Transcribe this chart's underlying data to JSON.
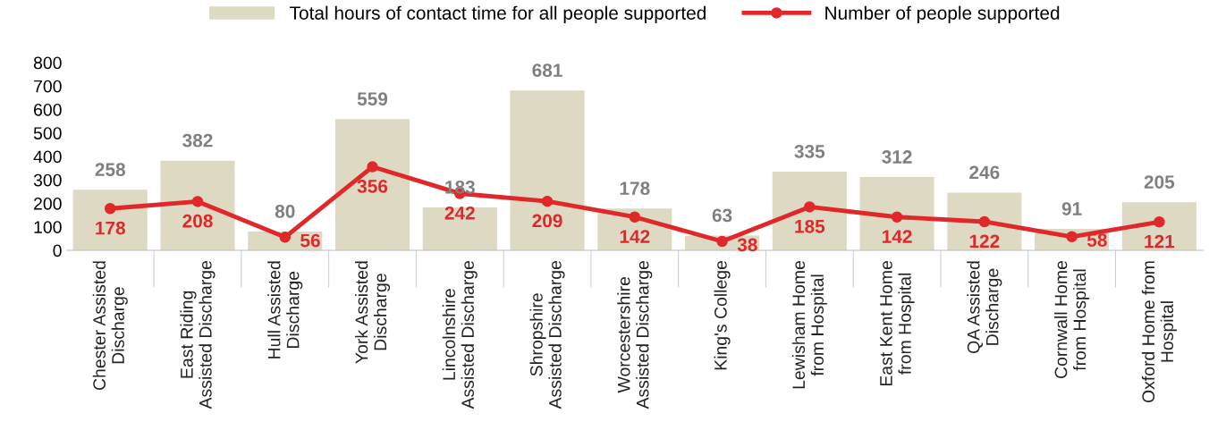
{
  "chart_data": {
    "type": "bar",
    "categories": [
      "Chester Assisted\nDischarge",
      "East Riding\nAssisted Discharge",
      "Hull Assisted\nDischarge",
      "York Assisted\nDischarge",
      "Lincolnshire\nAssisted Discharge",
      "Shropshire\nAssisted Discharge",
      "Worcestershire\nAssisted Discharge",
      "King's College",
      "Lewisham Home\nfrom Hospital",
      "East Kent Home\nfrom Hospital",
      "QA Assisted\nDischarge",
      "Cornwall Home\nfrom Hospital",
      "Oxford Home from\nHospital"
    ],
    "series": [
      {
        "name": "Total hours of contact time for all people supported",
        "color": "#ddd9c3",
        "values": [
          258,
          382,
          80,
          559,
          183,
          681,
          178,
          63,
          335,
          312,
          246,
          91,
          205
        ]
      },
      {
        "name": "Number of people supported",
        "type": "line",
        "color": "#e0282b",
        "marker": "circle",
        "values": [
          178,
          208,
          56,
          356,
          242,
          209,
          142,
          38,
          185,
          142,
          122,
          58,
          121
        ]
      }
    ],
    "ylim": [
      0,
      800
    ],
    "yticks": [
      0,
      100,
      200,
      300,
      400,
      500,
      600,
      700,
      800
    ],
    "data_labels": true,
    "grid": false,
    "legend": "top"
  }
}
